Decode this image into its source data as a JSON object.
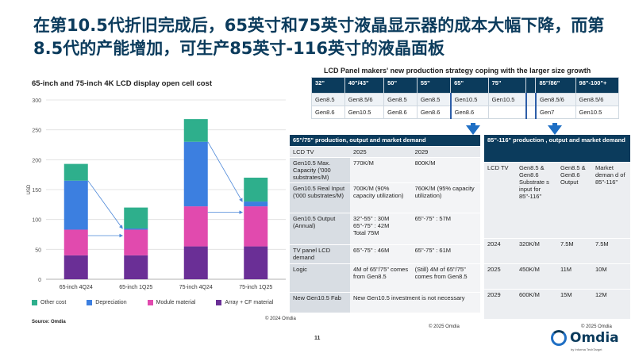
{
  "title": "在第10.5代折旧完成后，65英寸和75英寸液晶显示器的成本大幅下降，而第8.5代的产能增加，可生产85英寸-116英寸的液晶面板",
  "chart_data": {
    "type": "bar",
    "stacked": true,
    "title": "65-inch and 75-inch 4K LCD display open cell cost",
    "xlabel": "",
    "ylabel": "USD",
    "ylim": [
      0,
      300
    ],
    "yticks": [
      0,
      50,
      100,
      150,
      200,
      250,
      300
    ],
    "categories": [
      "65-inch 4Q24",
      "65-inch 1Q25",
      "75-inch 4Q24",
      "75-inch 1Q25"
    ],
    "series": [
      {
        "name": "Array + CF material",
        "color": "#6a2f96",
        "values": [
          40,
          40,
          55,
          55
        ]
      },
      {
        "name": "Module material",
        "color": "#e14aae",
        "values": [
          43,
          43,
          67,
          67
        ]
      },
      {
        "name": "Depreciation",
        "color": "#3c7fe0",
        "values": [
          82,
          2,
          108,
          8
        ]
      },
      {
        "name": "Other cost",
        "color": "#2eaf8c",
        "values": [
          28,
          35,
          38,
          40
        ]
      }
    ],
    "legend_order": [
      "Other cost",
      "Depreciation",
      "Module material",
      "Array + CF material"
    ],
    "legend_position": "bottom",
    "grid": true
  },
  "left": {
    "source": "Source:  Omdia",
    "copyright": "© 2024 Omdia"
  },
  "strategy": {
    "title": "LCD Panel makers' new production strategy coping with the larger size growth",
    "header": [
      "32\"",
      "40\"/43\"",
      "50\"",
      "55\"",
      "65\"",
      "75\"",
      "",
      "85\"/86\"",
      "98\"-100\"+"
    ],
    "row1": [
      "Gen8.5",
      "Gen8.5/6",
      "Gen8.5",
      "Gen8.5",
      "Gen10.5",
      "Gen10.5",
      "",
      "Gen8.5/6",
      "Gen8.5/6"
    ],
    "row2": [
      "Gen8.6",
      "Gen10.5",
      "Gen8.6",
      "Gen8.6",
      "Gen8.6",
      "",
      "",
      "Gen7",
      "Gen10.5"
    ]
  },
  "mid": {
    "title": "65\"/75\" production, output and market demand",
    "cols": [
      "LCD TV",
      "2025",
      "2029"
    ],
    "rows": [
      [
        "Gen10.5   Max. Capacity  ('000 substrates/M)",
        "770K/M",
        "800K/M"
      ],
      [
        "Gen10.5 Real Input ('000 substrates/M)",
        "700K/M (90% capacity utilization)",
        "760K/M (95% capacity utilization)"
      ],
      [
        "Gen10.5 Output (Annual)",
        "32\"-55\" : 30M\n65\"-75\" : 42M\nTotal 75M",
        "65\"-75\" : 57M"
      ],
      [
        "TV panel LCD demand",
        "65\"-75\" : 46M",
        "65\"-75\" : 61M"
      ],
      [
        "Logic",
        "4M of 65\"/75\" comes from Gen8.5",
        "(Still) 4M of 65\"/75\" comes from Gen8.5"
      ],
      [
        "New Gen10.5 Fab",
        "New Gen10.5 investment is not necessary",
        ""
      ]
    ],
    "copyright": "© 2025 Omdia"
  },
  "right": {
    "title": "85\"-116\" production , output and market demand",
    "cols": [
      "LCD TV",
      "Gen8.5 & Gen8.6 Substrate s input for 85\"-116\"",
      "Gen8.5 & Gen8.6 Output",
      "Market deman d of 85\"-116\""
    ],
    "rows": [
      [
        "2024",
        "320K/M",
        "7.5M",
        "7.5M"
      ],
      [
        "2025",
        "450K/M",
        "11M",
        "10M"
      ],
      [
        "2029",
        "600K/M",
        "15M",
        "12M"
      ]
    ],
    "copyright": "© 2025 Omdia"
  },
  "page_number": "11",
  "logo": {
    "name": "Omdia",
    "sub": "by Informa TechTarget"
  }
}
